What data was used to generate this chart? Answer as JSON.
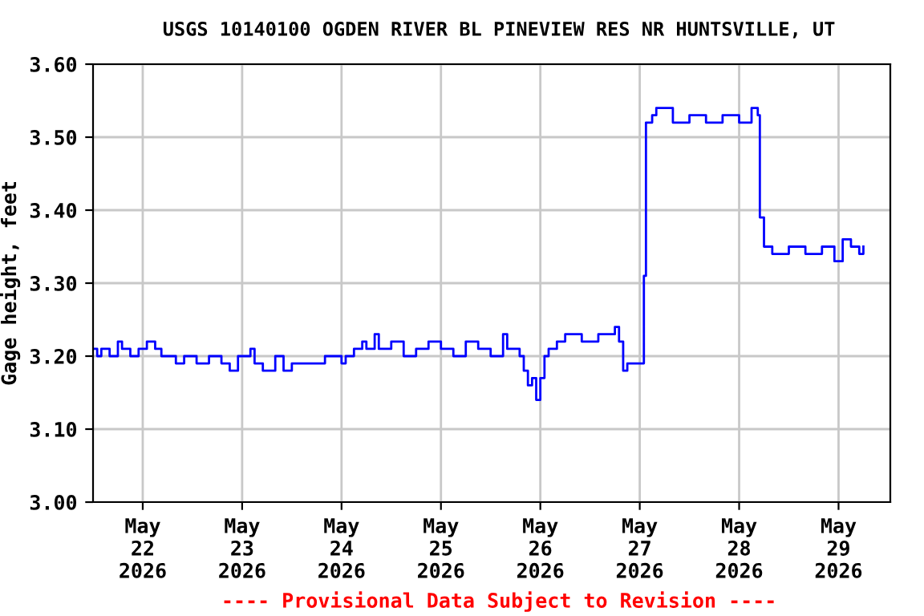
{
  "chart_data": {
    "type": "step",
    "title": "USGS 10140100 OGDEN RIVER BL PINEVIEW RES NR HUNTSVILLE, UT",
    "ylabel": "Gage height, feet",
    "annotations": [
      "---- Provisional Data Subject to Revision ----"
    ],
    "x": [
      "2026-05-21T12:00",
      "2026-05-21T13:00",
      "2026-05-21T14:00",
      "2026-05-21T16:00",
      "2026-05-21T18:00",
      "2026-05-21T19:00",
      "2026-05-21T21:00",
      "2026-05-21T23:00",
      "2026-05-22T01:00",
      "2026-05-22T03:00",
      "2026-05-22T04:30",
      "2026-05-22T06:00",
      "2026-05-22T08:00",
      "2026-05-22T10:00",
      "2026-05-22T13:00",
      "2026-05-22T16:00",
      "2026-05-22T19:00",
      "2026-05-22T21:00",
      "2026-05-22T23:00",
      "2026-05-23T02:00",
      "2026-05-23T03:00",
      "2026-05-23T05:00",
      "2026-05-23T08:00",
      "2026-05-23T10:00",
      "2026-05-23T12:00",
      "2026-05-23T16:00",
      "2026-05-23T20:00",
      "2026-05-24T00:00",
      "2026-05-24T01:00",
      "2026-05-24T03:00",
      "2026-05-24T05:00",
      "2026-05-24T06:00",
      "2026-05-24T08:00",
      "2026-05-24T09:00",
      "2026-05-24T12:00",
      "2026-05-24T15:00",
      "2026-05-24T18:00",
      "2026-05-24T21:00",
      "2026-05-25T00:00",
      "2026-05-25T03:00",
      "2026-05-25T06:00",
      "2026-05-25T09:00",
      "2026-05-25T12:00",
      "2026-05-25T15:00",
      "2026-05-25T16:00",
      "2026-05-25T18:00",
      "2026-05-25T19:00",
      "2026-05-25T20:00",
      "2026-05-25T21:00",
      "2026-05-25T22:00",
      "2026-05-25T23:00",
      "2026-05-26T00:00",
      "2026-05-26T01:00",
      "2026-05-26T02:00",
      "2026-05-26T04:00",
      "2026-05-26T06:00",
      "2026-05-26T10:00",
      "2026-05-26T14:00",
      "2026-05-26T18:00",
      "2026-05-26T19:00",
      "2026-05-26T20:00",
      "2026-05-26T21:00",
      "2026-05-27T00:00",
      "2026-05-27T01:00",
      "2026-05-27T01:30",
      "2026-05-27T03:00",
      "2026-05-27T04:00",
      "2026-05-27T08:00",
      "2026-05-27T12:00",
      "2026-05-27T16:00",
      "2026-05-27T20:00",
      "2026-05-28T00:00",
      "2026-05-28T03:00",
      "2026-05-28T04:30",
      "2026-05-28T05:00",
      "2026-05-28T06:00",
      "2026-05-28T08:00",
      "2026-05-28T12:00",
      "2026-05-28T16:00",
      "2026-05-28T20:00",
      "2026-05-28T23:00",
      "2026-05-29T01:00",
      "2026-05-29T03:00",
      "2026-05-29T05:00",
      "2026-05-29T06:00"
    ],
    "series": [
      {
        "color": "#0000ff",
        "values": [
          3.21,
          3.2,
          3.21,
          3.2,
          3.22,
          3.21,
          3.2,
          3.21,
          3.22,
          3.21,
          3.2,
          3.2,
          3.19,
          3.2,
          3.19,
          3.2,
          3.19,
          3.18,
          3.2,
          3.21,
          3.19,
          3.18,
          3.2,
          3.18,
          3.19,
          3.19,
          3.2,
          3.19,
          3.2,
          3.21,
          3.22,
          3.21,
          3.23,
          3.21,
          3.22,
          3.2,
          3.21,
          3.22,
          3.21,
          3.2,
          3.22,
          3.21,
          3.2,
          3.23,
          3.21,
          3.21,
          3.2,
          3.18,
          3.16,
          3.17,
          3.14,
          3.17,
          3.2,
          3.21,
          3.22,
          3.23,
          3.22,
          3.23,
          3.24,
          3.22,
          3.18,
          3.19,
          3.19,
          3.31,
          3.52,
          3.53,
          3.54,
          3.52,
          3.53,
          3.52,
          3.53,
          3.52,
          3.54,
          3.53,
          3.39,
          3.35,
          3.34,
          3.35,
          3.34,
          3.35,
          3.33,
          3.36,
          3.35,
          3.34,
          3.35
        ]
      }
    ],
    "xlim": [
      "2026-05-21T12:00",
      "2026-05-29T12:30"
    ],
    "xticks": [
      {
        "value": "2026-05-22",
        "label": "May\n22\n2026"
      },
      {
        "value": "2026-05-23",
        "label": "May\n23\n2026"
      },
      {
        "value": "2026-05-24",
        "label": "May\n24\n2026"
      },
      {
        "value": "2026-05-25",
        "label": "May\n25\n2026"
      },
      {
        "value": "2026-05-26",
        "label": "May\n26\n2026"
      },
      {
        "value": "2026-05-27",
        "label": "May\n27\n2026"
      },
      {
        "value": "2026-05-28",
        "label": "May\n28\n2026"
      },
      {
        "value": "2026-05-29",
        "label": "May\n29\n2026"
      }
    ],
    "ylim": [
      3.0,
      3.6
    ],
    "yticks": [
      {
        "value": 3.0,
        "label": "3.00"
      },
      {
        "value": 3.1,
        "label": "3.10"
      },
      {
        "value": 3.2,
        "label": "3.20"
      },
      {
        "value": 3.3,
        "label": "3.30"
      },
      {
        "value": 3.4,
        "label": "3.40"
      },
      {
        "value": 3.5,
        "label": "3.50"
      },
      {
        "value": 3.6,
        "label": "3.60"
      }
    ],
    "grid": true
  }
}
